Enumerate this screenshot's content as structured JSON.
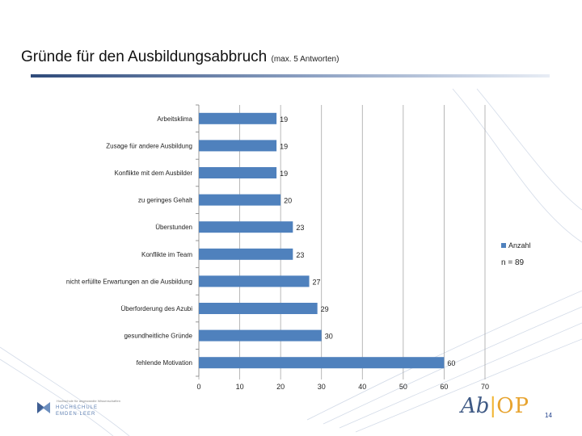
{
  "slide": {
    "title": "Gründe für den Ausbildungsabbruch",
    "subtitle": "(max. 5 Antworten)",
    "page_number": "14"
  },
  "chart_data": {
    "type": "bar",
    "orientation": "horizontal",
    "categories": [
      "Arbeitsklima",
      "Zusage für andere Ausbildung",
      "Konflikte mit dem Ausbilder",
      "zu geringes Gehalt",
      "Überstunden",
      "Konflikte im Team",
      "nicht erfüllte Erwartungen an die Ausbildung",
      "Überforderung des Azubi",
      "gesundheitliche Gründe",
      "fehlende Motivation"
    ],
    "series": [
      {
        "name": "Anzahl",
        "values": [
          19,
          19,
          19,
          20,
          23,
          23,
          27,
          29,
          30,
          60
        ]
      }
    ],
    "xlim": [
      0,
      70
    ],
    "xticks": [
      "0",
      "10",
      "20",
      "30",
      "40",
      "50",
      "60",
      "70"
    ],
    "grid": true,
    "legend": "right",
    "annotation": "n = 89",
    "colors": {
      "bar": "#4f81bd",
      "grid": "#a6a6a6",
      "text": "#222222"
    }
  },
  "logos": {
    "left_small": "Hochschule für angewandte Wissenschaften",
    "left_line1": "HOCHSCHULE",
    "left_line2": "EMDEN·LEER",
    "right_ab": "Ab",
    "right_sep": "|",
    "right_op": "OP"
  }
}
